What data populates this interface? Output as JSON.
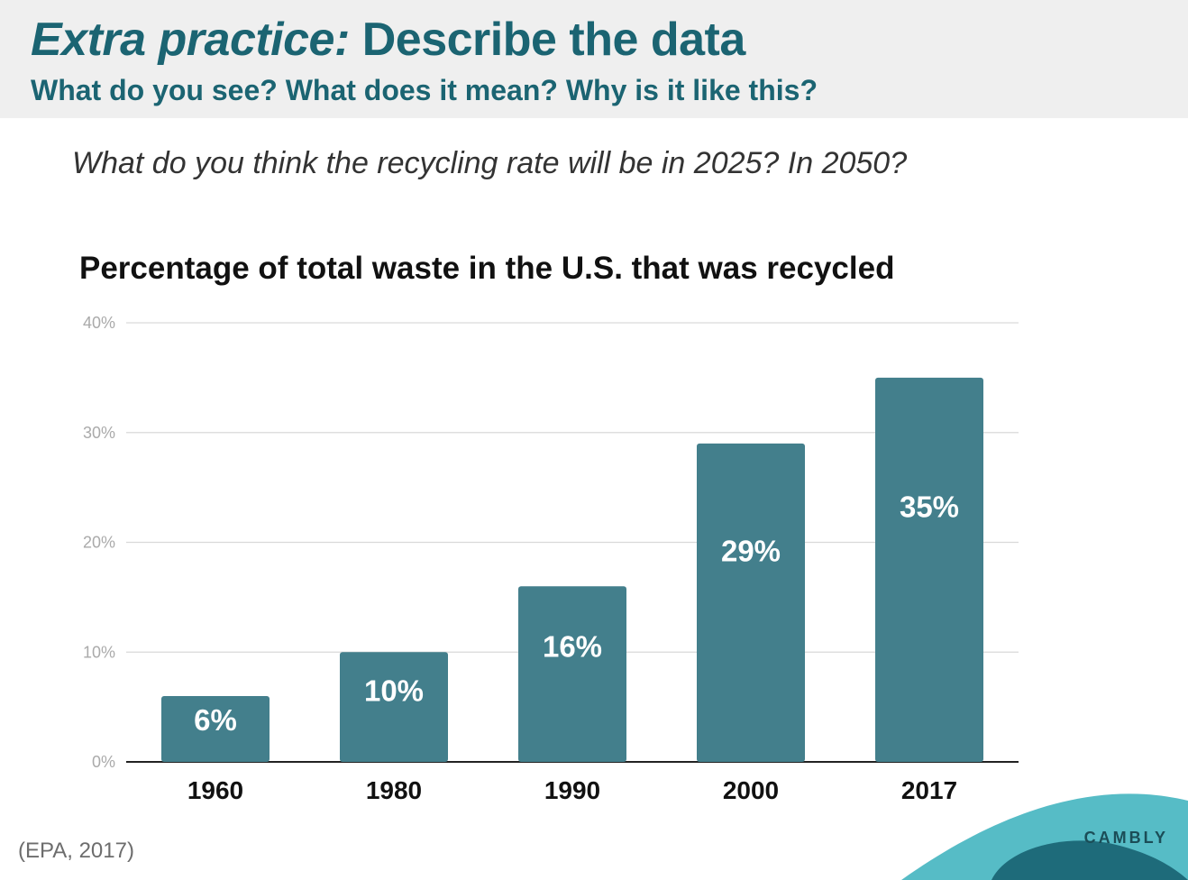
{
  "header": {
    "title_italic": "Extra practice:",
    "title_rest": " Describe the data",
    "subtitle": "What do you see? What does it mean? Why is it like this?"
  },
  "question": "What do you think the recycling rate will be in 2025? In 2050?",
  "source": "(EPA, 2017)",
  "logo": "CAMBLY",
  "colors": {
    "bar": "#437f8c",
    "header_text": "#1b6472",
    "header_bg": "#efefef",
    "grid": "#d9d9d9",
    "wave_light": "#56bcc6",
    "wave_dark": "#1e6b7a"
  },
  "chart_data": {
    "type": "bar",
    "title": "Percentage of total waste in the U.S. that was recycled",
    "categories": [
      "1960",
      "1980",
      "1990",
      "2000",
      "2017"
    ],
    "values": [
      6,
      10,
      16,
      29,
      35
    ],
    "data_labels": [
      "6%",
      "10%",
      "16%",
      "29%",
      "35%"
    ],
    "ylim": [
      0,
      40
    ],
    "yticks": [
      0,
      10,
      20,
      30,
      40
    ],
    "ytick_labels": [
      "0%",
      "10%",
      "20%",
      "30%",
      "40%"
    ],
    "xlabel": "",
    "ylabel": "",
    "grid": true,
    "legend": "none"
  }
}
